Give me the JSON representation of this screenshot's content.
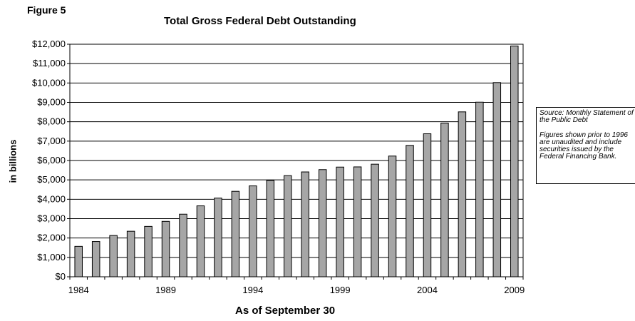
{
  "figure_label": "Figure 5",
  "note": {
    "source": "Source: Monthly Statement of the Public Debt",
    "disclaimer": "Figures shown prior to 1996 are unaudited and include securities issued by the Federal Financing Bank."
  },
  "chart_data": {
    "type": "bar",
    "title": "Total Gross Federal Debt Outstanding",
    "xlabel": "As of September 30",
    "ylabel": "in billions",
    "categories": [
      "1984",
      "1985",
      "1986",
      "1987",
      "1988",
      "1989",
      "1990",
      "1991",
      "1992",
      "1993",
      "1994",
      "1995",
      "1996",
      "1997",
      "1998",
      "1999",
      "2000",
      "2001",
      "2002",
      "2003",
      "2004",
      "2005",
      "2006",
      "2007",
      "2008",
      "2009"
    ],
    "x_tick_labels": [
      "1984",
      "1989",
      "1994",
      "1999",
      "2004",
      "2009"
    ],
    "values": [
      1570,
      1820,
      2130,
      2350,
      2600,
      2860,
      3230,
      3660,
      4060,
      4410,
      4690,
      4970,
      5220,
      5410,
      5530,
      5660,
      5670,
      5810,
      6230,
      6780,
      7380,
      7930,
      8510,
      9010,
      10020,
      11910
    ],
    "ylim": [
      0,
      12000
    ],
    "y_ticks": [
      0,
      1000,
      2000,
      3000,
      4000,
      5000,
      6000,
      7000,
      8000,
      9000,
      10000,
      11000,
      12000
    ],
    "y_tick_labels": [
      "$0",
      "$1,000",
      "$2,000",
      "$3,000",
      "$4,000",
      "$5,000",
      "$6,000",
      "$7,000",
      "$8,000",
      "$9,000",
      "$10,000",
      "$11,000",
      "$12,000"
    ],
    "grid": true,
    "bar_color": "#a6a6a6"
  }
}
